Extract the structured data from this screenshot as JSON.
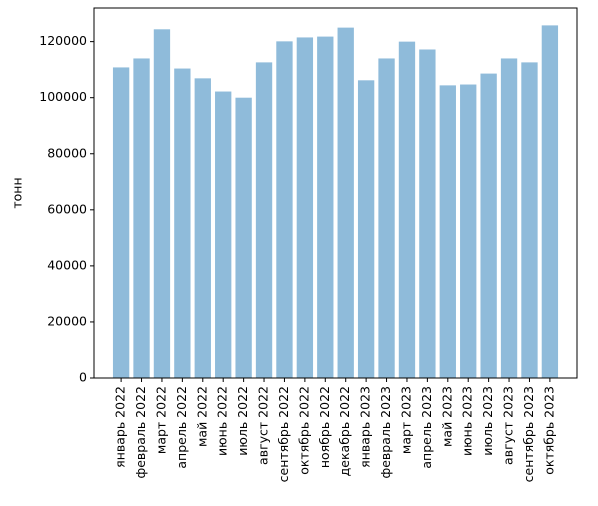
{
  "chart_data": {
    "type": "bar",
    "title": "",
    "xlabel": "",
    "ylabel": "тонн",
    "ylim": [
      0,
      132000
    ],
    "yticks": [
      0,
      20000,
      40000,
      60000,
      80000,
      100000,
      120000
    ],
    "grid": false,
    "bar_color": "#8fbbda",
    "categories": [
      "январь 2022",
      "февраль 2022",
      "март 2022",
      "апрель 2022",
      "май 2022",
      "июнь 2022",
      "июль 2022",
      "август 2022",
      "сентябрь 2022",
      "октябрь 2022",
      "ноябрь 2022",
      "декабрь 2022",
      "январь 2023",
      "февраль 2023",
      "март 2023",
      "апрель 2023",
      "май 2023",
      "июнь 2023",
      "июль 2023",
      "август 2023",
      "сентябрь 2023",
      "октябрь 2023"
    ],
    "values": [
      110800,
      114000,
      124400,
      110400,
      106900,
      102200,
      100000,
      112600,
      120100,
      121500,
      121800,
      125000,
      106200,
      114000,
      120000,
      117200,
      104400,
      104700,
      108600,
      114000,
      112600,
      125800
    ]
  }
}
